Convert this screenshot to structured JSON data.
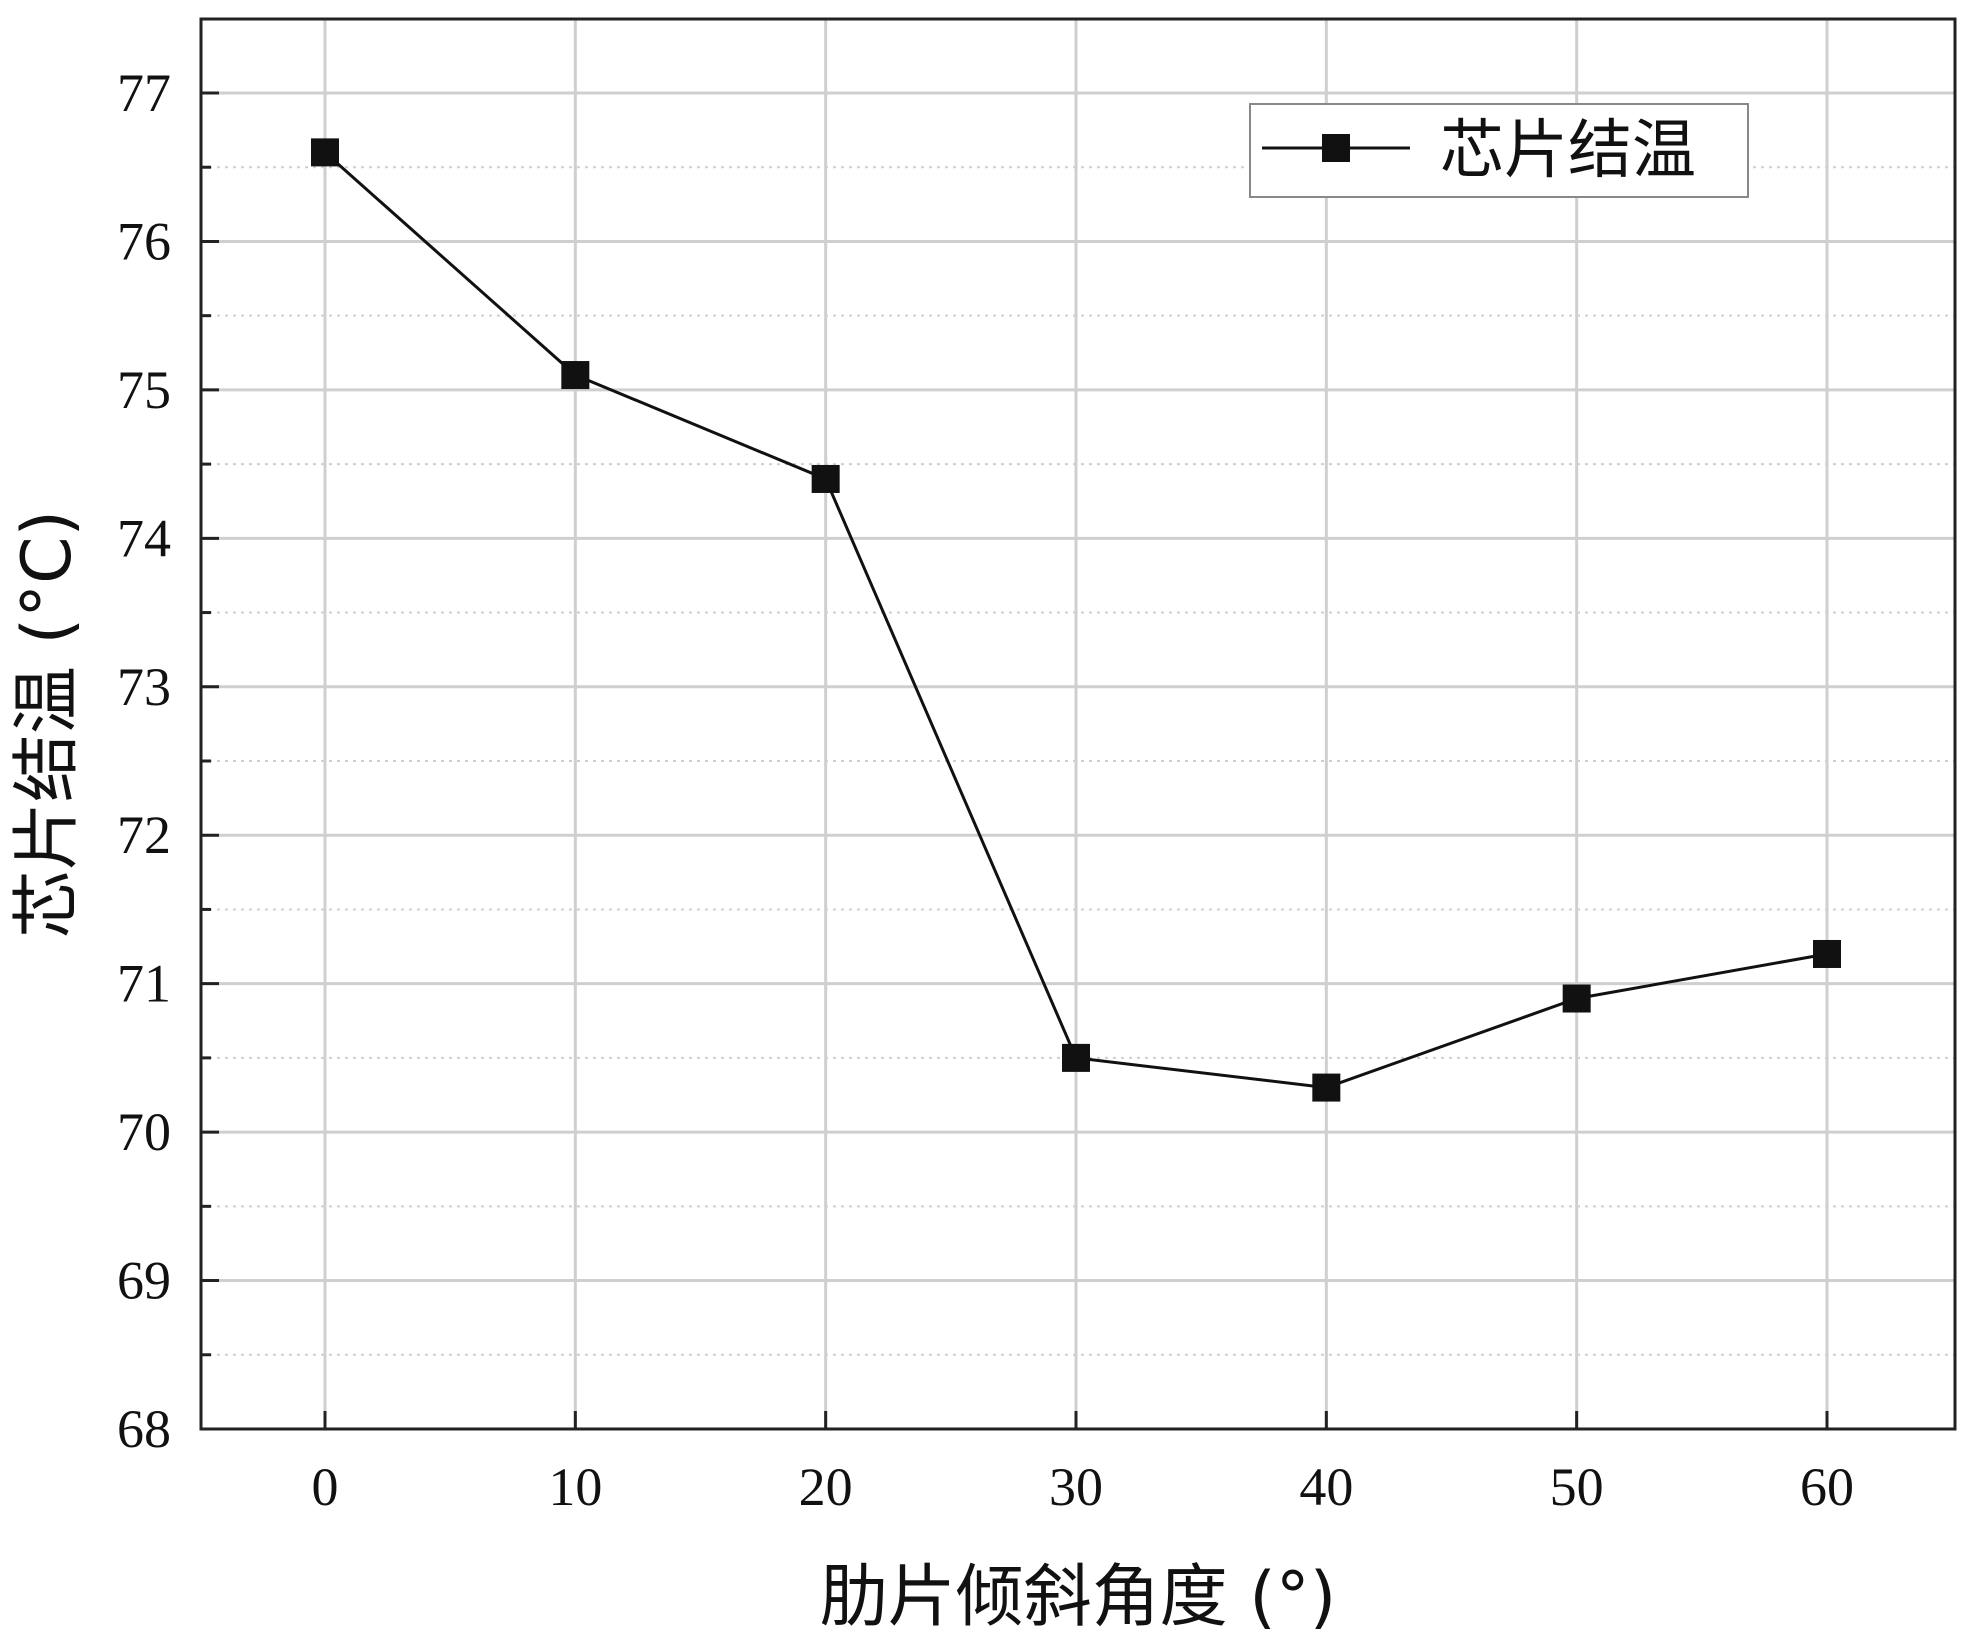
{
  "chart_data": {
    "type": "line",
    "x": [
      0,
      10,
      20,
      30,
      40,
      50,
      60
    ],
    "series": [
      {
        "name": "芯片结温",
        "values": [
          76.6,
          75.1,
          74.4,
          70.5,
          70.3,
          70.9,
          71.2
        ],
        "color": "#111111",
        "marker": "square"
      }
    ],
    "xlabel": "肋片倾斜角度 (°)",
    "ylabel": "芯片结温 (°C)",
    "xlim": [
      -5,
      65
    ],
    "ylim": [
      68,
      77.5
    ],
    "xticks": [
      "0",
      "10",
      "20",
      "30",
      "40",
      "50",
      "60"
    ],
    "yticks": [
      "68",
      "69",
      "70",
      "71",
      "72",
      "73",
      "74",
      "75",
      "76",
      "77"
    ],
    "grid": true,
    "legend": "top-right"
  }
}
